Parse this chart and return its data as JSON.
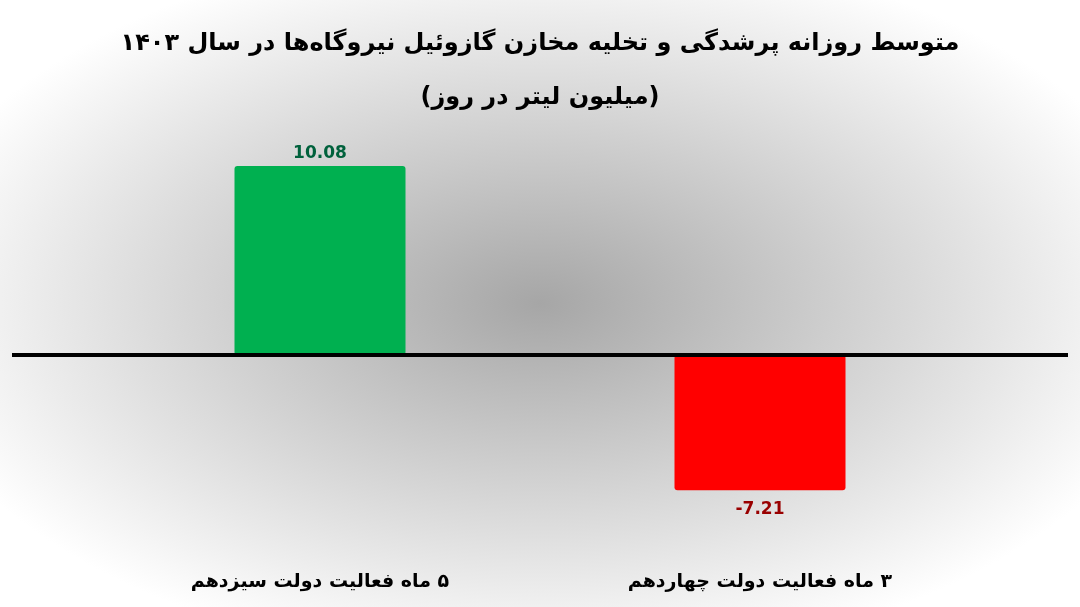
{
  "chart_data": {
    "type": "bar",
    "title": "متوسط روزانه پرشدگی و تخلیه مخازن گازوئیل نیروگاه‌ها در سال ۱۴۰۳",
    "subtitle": "(میلیون لیتر در روز)",
    "categories": [
      "۵ ماه فعالیت دولت سیزدهم",
      "۳ ماه فعالیت دولت چهاردهم"
    ],
    "values": [
      10.08,
      -7.21
    ],
    "colors": [
      "#00b050",
      "#ff0000"
    ],
    "data_labels": true
  }
}
